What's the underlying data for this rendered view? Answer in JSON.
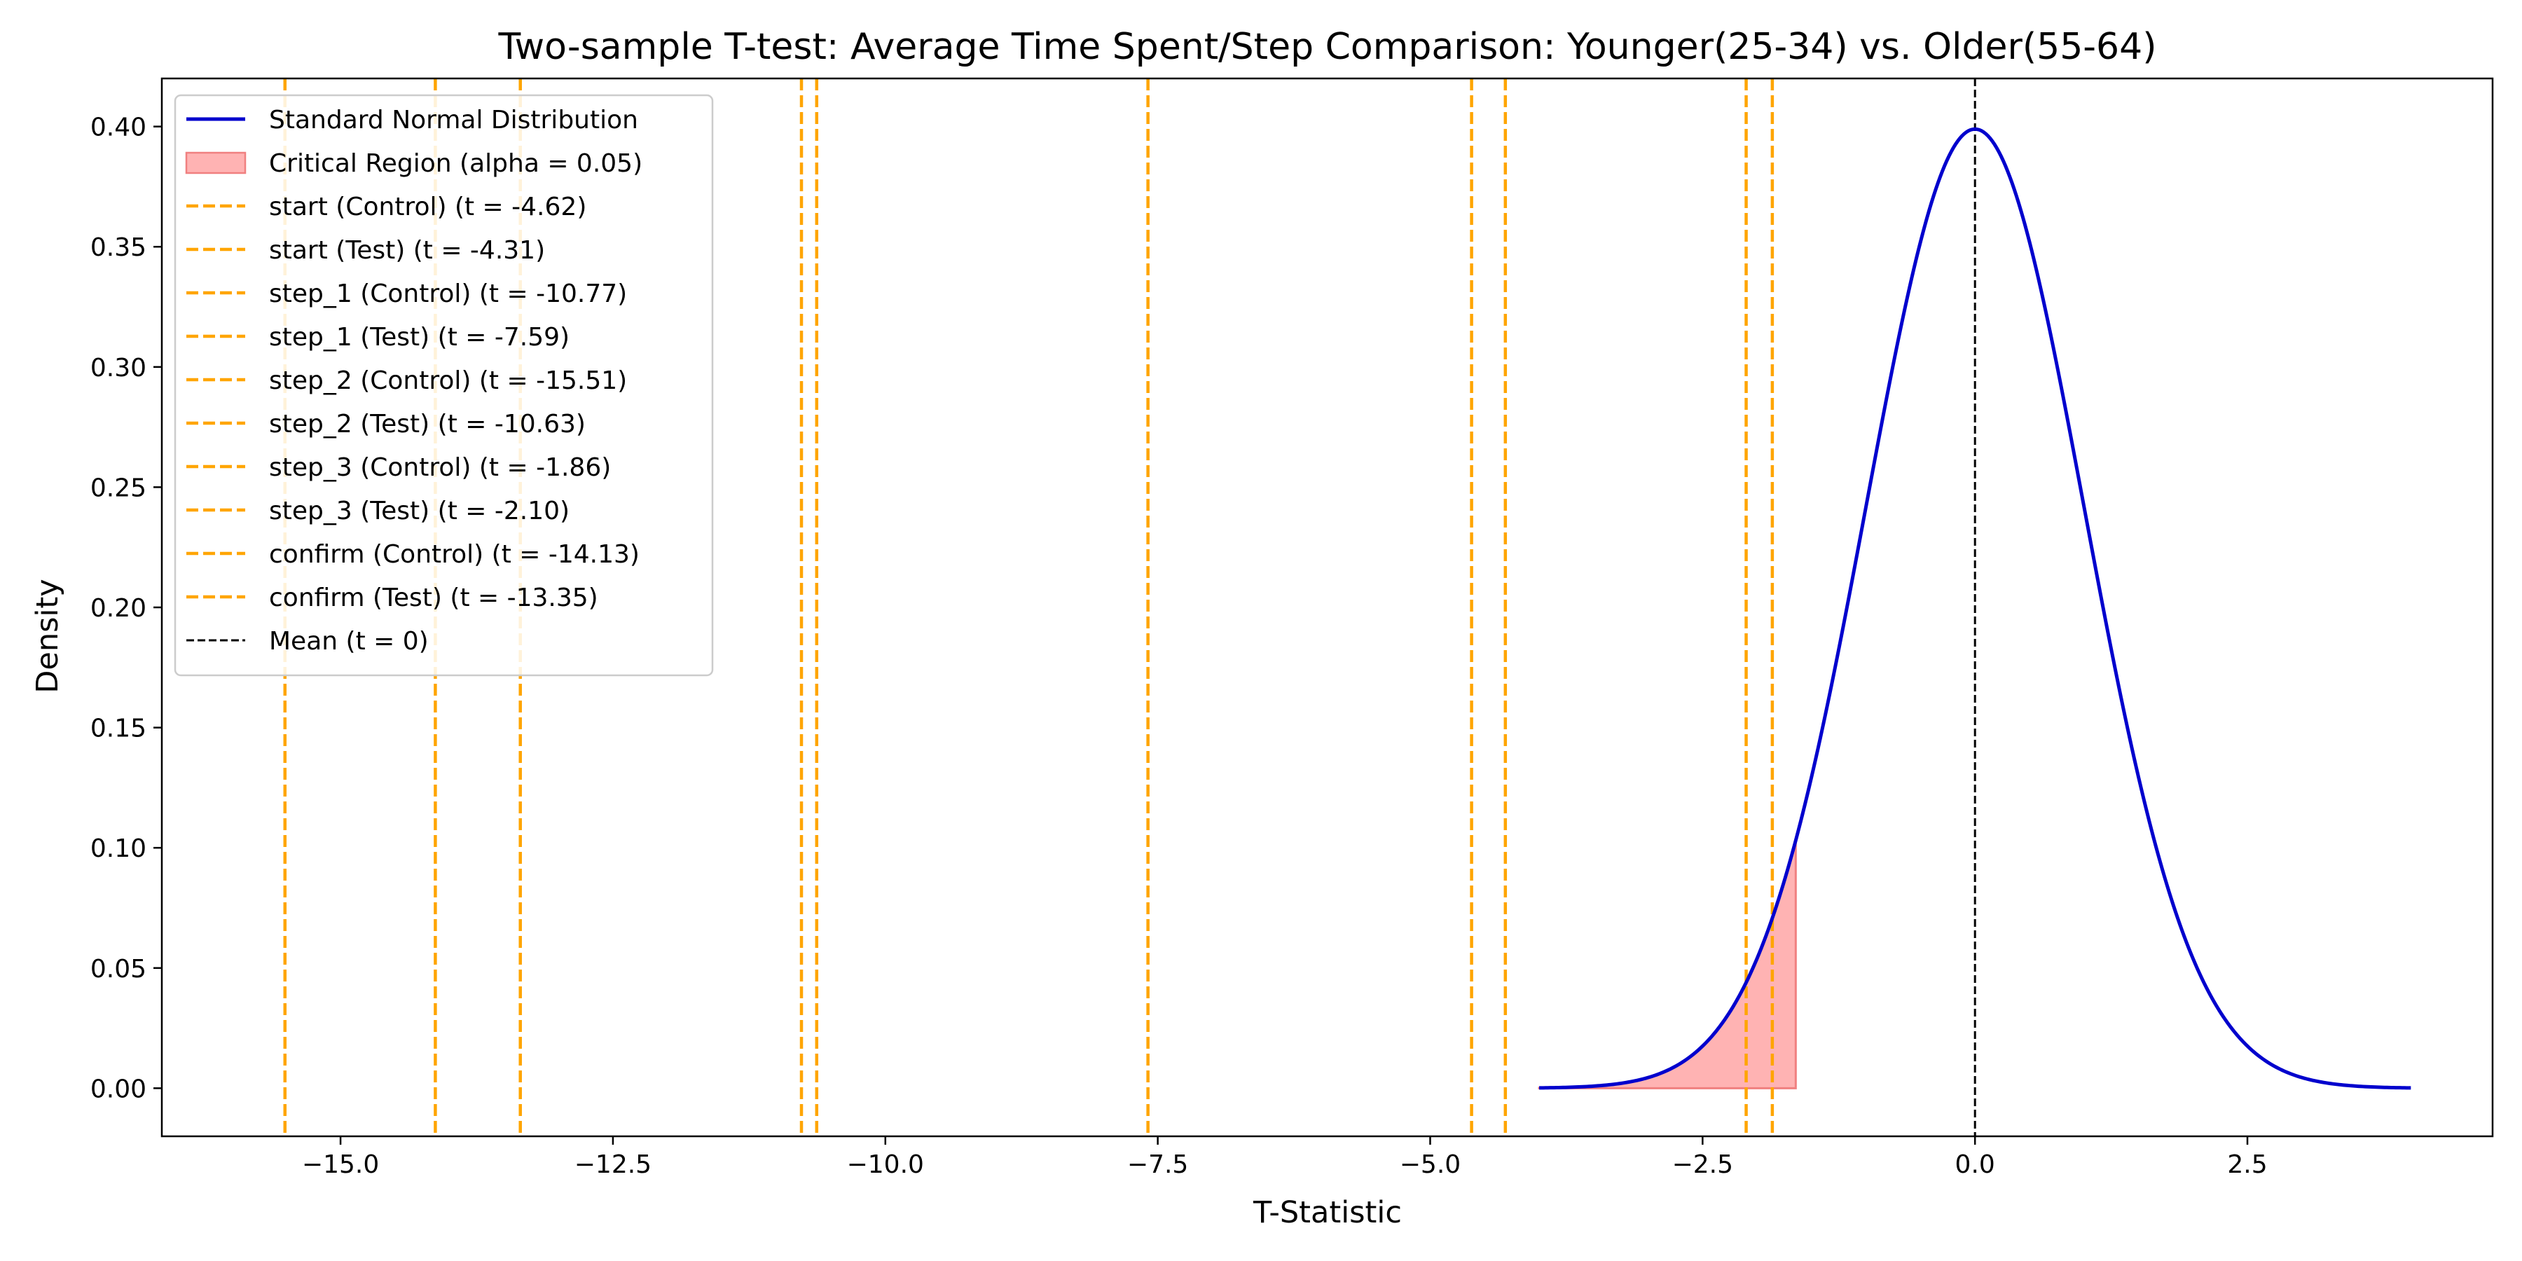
{
  "chart_data": {
    "type": "line",
    "title": "Two-sample T-test: Average Time Spent/Step Comparison: Younger(25-34) vs. Older(55-64)",
    "xlabel": "T-Statistic",
    "ylabel": "Density",
    "xlim": [
      -16.64,
      4.75
    ],
    "ylim": [
      -0.02,
      0.42
    ],
    "xticks": [
      -15.0,
      -12.5,
      -10.0,
      -7.5,
      -5.0,
      -2.5,
      0.0,
      2.5
    ],
    "xtick_labels": [
      "−15.0",
      "−12.5",
      "−10.0",
      "−7.5",
      "−5.0",
      "−2.5",
      "0.0",
      "2.5"
    ],
    "yticks": [
      0.0,
      0.05,
      0.1,
      0.15,
      0.2,
      0.25,
      0.3,
      0.35,
      0.4
    ],
    "ytick_labels": [
      "0.00",
      "0.05",
      "0.10",
      "0.15",
      "0.20",
      "0.25",
      "0.30",
      "0.35",
      "0.40"
    ],
    "grid": false,
    "legend_position": "top-left",
    "curve": {
      "name": "Standard Normal Distribution",
      "distribution": "standard normal",
      "x_range": [
        -4,
        4
      ],
      "color": "#0000cd"
    },
    "critical_region": {
      "name": "Critical Region (alpha = 0.05)",
      "x_range": [
        -4,
        -1.645
      ],
      "color": "#ff9999"
    },
    "t_statistics": [
      {
        "name": "start (Control) (t = -4.62)",
        "t": -4.62
      },
      {
        "name": "start (Test) (t = -4.31)",
        "t": -4.31
      },
      {
        "name": "step_1 (Control) (t = -10.77)",
        "t": -10.77
      },
      {
        "name": "step_1 (Test) (t = -7.59)",
        "t": -7.59
      },
      {
        "name": "step_2 (Control) (t = -15.51)",
        "t": -15.51
      },
      {
        "name": "step_2 (Test) (t = -10.63)",
        "t": -10.63
      },
      {
        "name": "step_3 (Control) (t = -1.86)",
        "t": -1.86
      },
      {
        "name": "step_3 (Test) (t = -2.10)",
        "t": -2.1
      },
      {
        "name": "confirm (Control) (t = -14.13)",
        "t": -14.13
      },
      {
        "name": "confirm (Test) (t = -13.35)",
        "t": -13.35
      }
    ],
    "t_line_color": "#ffa500",
    "mean_line": {
      "name": "Mean (t = 0)",
      "t": 0,
      "color": "#000000"
    }
  }
}
